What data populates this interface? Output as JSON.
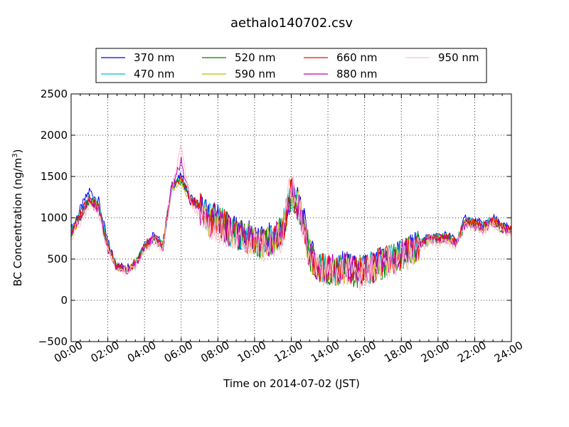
{
  "chart_data": {
    "type": "line",
    "title": "aethalo140702.csv",
    "xlabel": "Time on 2014-07-02 (JST)",
    "ylabel": "BC Concentration (ng/m",
    "ylabel_sup": "3",
    "ylabel_end": ")",
    "xlim": [
      0,
      24
    ],
    "ylim": [
      -500,
      2500
    ],
    "grid": true,
    "legend_position": "top",
    "x_ticks": [
      {
        "v": 0,
        "label": "00:00"
      },
      {
        "v": 2,
        "label": "02:00"
      },
      {
        "v": 4,
        "label": "04:00"
      },
      {
        "v": 6,
        "label": "06:00"
      },
      {
        "v": 8,
        "label": "08:00"
      },
      {
        "v": 10,
        "label": "10:00"
      },
      {
        "v": 12,
        "label": "12:00"
      },
      {
        "v": 14,
        "label": "14:00"
      },
      {
        "v": 16,
        "label": "16:00"
      },
      {
        "v": 18,
        "label": "18:00"
      },
      {
        "v": 20,
        "label": "20:00"
      },
      {
        "v": 22,
        "label": "22:00"
      },
      {
        "v": 24,
        "label": "24:00"
      }
    ],
    "y_ticks": [
      {
        "v": -500,
        "label": "−500"
      },
      {
        "v": 0,
        "label": "0"
      },
      {
        "v": 500,
        "label": "500"
      },
      {
        "v": 1000,
        "label": "1000"
      },
      {
        "v": 1500,
        "label": "1500"
      },
      {
        "v": 2000,
        "label": "2000"
      },
      {
        "v": 2500,
        "label": "2500"
      }
    ],
    "x_hours": [
      0,
      0.5,
      1.0,
      1.5,
      2.0,
      2.5,
      3.0,
      3.5,
      4.0,
      4.5,
      5.0,
      5.5,
      6.0,
      6.5,
      7.0,
      7.5,
      8.0,
      8.5,
      9.0,
      9.5,
      10.0,
      10.5,
      11.0,
      11.5,
      12.0,
      12.5,
      13.0,
      13.5,
      14.0,
      14.5,
      15.0,
      15.5,
      16.0,
      16.5,
      17.0,
      17.5,
      18.0,
      18.5,
      19.0,
      19.5,
      20.0,
      20.5,
      21.0,
      21.5,
      22.0,
      22.5,
      23.0,
      23.5,
      24.0
    ],
    "series": [
      {
        "name": "370 nm",
        "color": "#0000ff",
        "values": [
          850,
          1100,
          1330,
          1200,
          700,
          420,
          400,
          450,
          680,
          780,
          680,
          1400,
          1500,
          1250,
          1150,
          1000,
          1000,
          900,
          820,
          800,
          750,
          700,
          780,
          850,
          1300,
          1150,
          580,
          420,
          400,
          380,
          420,
          360,
          380,
          420,
          470,
          520,
          580,
          620,
          700,
          760,
          780,
          790,
          720,
          1000,
          950,
          920,
          1000,
          900,
          880
        ]
      },
      {
        "name": "470 nm",
        "color": "#00bfbf",
        "values": [
          820,
          1050,
          1250,
          1150,
          650,
          410,
          390,
          440,
          660,
          760,
          670,
          1380,
          1480,
          1230,
          1130,
          980,
          970,
          880,
          800,
          780,
          730,
          690,
          760,
          830,
          1300,
          1130,
          560,
          410,
          390,
          370,
          410,
          350,
          370,
          410,
          460,
          500,
          560,
          610,
          690,
          740,
          760,
          770,
          700,
          960,
          930,
          900,
          980,
          890,
          860
        ]
      },
      {
        "name": "520 nm",
        "color": "#008000",
        "values": [
          810,
          1020,
          1220,
          1120,
          640,
          400,
          380,
          430,
          650,
          750,
          660,
          1370,
          1470,
          1220,
          1120,
          970,
          960,
          870,
          790,
          770,
          720,
          680,
          750,
          820,
          1280,
          1110,
          550,
          400,
          380,
          360,
          400,
          340,
          360,
          400,
          450,
          490,
          550,
          600,
          680,
          730,
          740,
          750,
          690,
          940,
          910,
          880,
          960,
          870,
          850
        ]
      },
      {
        "name": "590 nm",
        "color": "#bfbf00",
        "values": [
          800,
          1010,
          1210,
          1110,
          630,
          395,
          375,
          425,
          640,
          745,
          655,
          1360,
          1460,
          1210,
          1110,
          960,
          950,
          860,
          785,
          765,
          715,
          675,
          745,
          815,
          1330,
          1120,
          545,
          395,
          375,
          355,
          395,
          335,
          355,
          395,
          445,
          485,
          545,
          595,
          675,
          725,
          735,
          745,
          685,
          935,
          905,
          875,
          955,
          865,
          845
        ]
      },
      {
        "name": "660 nm",
        "color": "#ff0000",
        "values": [
          820,
          1040,
          1240,
          1130,
          650,
          410,
          390,
          440,
          660,
          760,
          670,
          1400,
          1500,
          1230,
          1140,
          990,
          970,
          880,
          800,
          780,
          730,
          690,
          760,
          830,
          1320,
          1130,
          560,
          410,
          390,
          370,
          410,
          350,
          370,
          410,
          460,
          500,
          560,
          610,
          690,
          740,
          750,
          760,
          700,
          960,
          930,
          900,
          980,
          880,
          860
        ]
      },
      {
        "name": "880 nm",
        "color": "#bf00bf",
        "values": [
          790,
          1000,
          1200,
          1100,
          630,
          390,
          370,
          420,
          640,
          740,
          650,
          1380,
          1700,
          1200,
          1100,
          950,
          940,
          850,
          780,
          760,
          720,
          700,
          750,
          820,
          1300,
          1100,
          540,
          390,
          380,
          360,
          420,
          330,
          350,
          400,
          450,
          490,
          540,
          590,
          670,
          720,
          730,
          740,
          680,
          930,
          900,
          870,
          950,
          860,
          840
        ]
      },
      {
        "name": "950 nm",
        "color": "#ffc0cb",
        "values": [
          760,
          960,
          1150,
          1050,
          600,
          370,
          350,
          400,
          610,
          700,
          620,
          1350,
          1900,
          1150,
          1050,
          900,
          890,
          800,
          730,
          700,
          680,
          650,
          700,
          780,
          1450,
          1050,
          500,
          360,
          340,
          330,
          380,
          300,
          320,
          380,
          430,
          470,
          520,
          570,
          640,
          690,
          700,
          710,
          650,
          900,
          870,
          840,
          930,
          830,
          810
        ]
      }
    ]
  }
}
